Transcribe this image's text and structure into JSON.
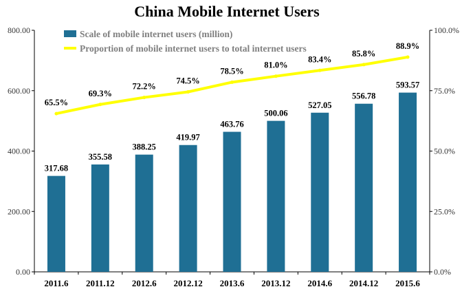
{
  "chart_data": {
    "type": "bar",
    "title": "China Mobile Internet Users",
    "categories": [
      "2011.6",
      "2011.12",
      "2012.6",
      "2012.12",
      "2013.6",
      "2013.12",
      "2014.6",
      "2014.12",
      "2015.6"
    ],
    "series": [
      {
        "name": "Scale of mobile internet users (million)",
        "type": "bar",
        "axis": "left",
        "color": "#1F6F94",
        "values": [
          317.68,
          355.58,
          388.25,
          419.97,
          463.76,
          500.06,
          527.05,
          556.78,
          593.57
        ],
        "labels": [
          "317.68",
          "355.58",
          "388.25",
          "419.97",
          "463.76",
          "500.06",
          "527.05",
          "556.78",
          "593.57"
        ]
      },
      {
        "name": "Proportion of mobile internet users to total internet users",
        "type": "line",
        "axis": "right",
        "color": "#FFFF00",
        "values": [
          65.5,
          69.3,
          72.2,
          74.5,
          78.5,
          81.0,
          83.4,
          85.8,
          88.9
        ],
        "labels": [
          "65.5%",
          "69.3%",
          "72.2%",
          "74.5%",
          "78.5%",
          "81.0%",
          "83.4%",
          "85.8%",
          "88.9%"
        ]
      }
    ],
    "y_left": {
      "ylim": [
        0,
        800
      ],
      "ticks": [
        "0.00",
        "200.00",
        "400.00",
        "600.00",
        "800.00"
      ],
      "tick_values": [
        0,
        200,
        400,
        600,
        800
      ]
    },
    "y_right": {
      "ylim": [
        0,
        100
      ],
      "ticks": [
        "0.0%",
        "25.0%",
        "50.0%",
        "75.0%",
        "100.0%"
      ],
      "tick_values": [
        0,
        25,
        50,
        75,
        100
      ]
    },
    "grid": false,
    "legend_position": "top-left"
  }
}
